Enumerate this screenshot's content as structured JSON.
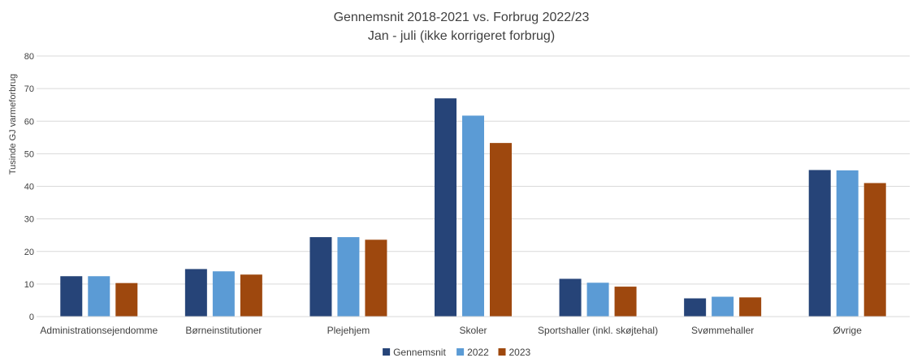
{
  "chart_data": {
    "type": "bar",
    "title": "Gennemsnit 2018-2021 vs. Forbrug 2022/23",
    "subtitle": "Jan - juli (ikke korrigeret forbrug)",
    "xlabel": "",
    "ylabel": "Tusinde GJ varmeforbrug",
    "ylim": [
      0,
      80
    ],
    "yticks": [
      "0",
      "10",
      "20",
      "30",
      "40",
      "50",
      "60",
      "70",
      "80"
    ],
    "grid": true,
    "legend_position": "bottom",
    "categories": [
      "Administrationsejendomme",
      "Børneinstitutioner",
      "Plejehjem",
      "Skoler",
      "Sportshaller (inkl. skøjtehal)",
      "Svømmehaller",
      "Øvrige"
    ],
    "series": [
      {
        "name": "Gennemsnit",
        "color": "#264478",
        "values": [
          12.4,
          14.6,
          24.4,
          67.0,
          11.6,
          5.6,
          45.0
        ]
      },
      {
        "name": "2022",
        "color": "#5B9BD5",
        "values": [
          12.4,
          13.9,
          24.4,
          61.7,
          10.4,
          6.1,
          44.9
        ]
      },
      {
        "name": "2023",
        "color": "#9E480E",
        "values": [
          10.3,
          12.9,
          23.6,
          53.3,
          9.2,
          5.9,
          41.0
        ]
      }
    ]
  }
}
